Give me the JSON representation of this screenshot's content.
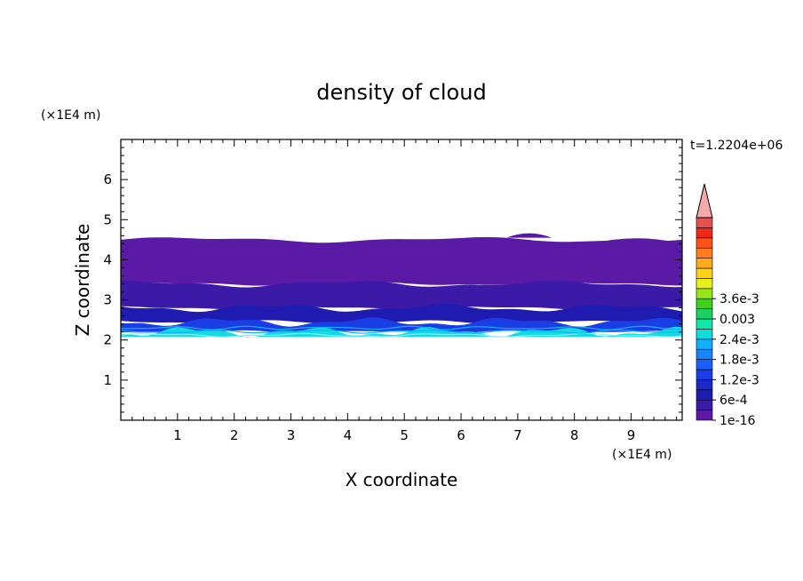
{
  "chart_data": {
    "type": "heatmap",
    "title": "density of cloud",
    "xlabel": "X coordinate",
    "ylabel": "Z coordinate",
    "x_unit": "(×1E4 m)",
    "y_unit": "(×1E4 m)",
    "time_label": "t=1.2204e+06",
    "xlim": [
      0,
      9.9
    ],
    "ylim": [
      0,
      7
    ],
    "x_ticks": [
      "1",
      "2",
      "3",
      "4",
      "5",
      "6",
      "7",
      "8",
      "9"
    ],
    "y_ticks": [
      "1",
      "2",
      "3",
      "4",
      "5",
      "6"
    ],
    "colorbar": {
      "labels": [
        "1e-16",
        "6e-4",
        "1.2e-3",
        "1.8e-3",
        "2.4e-3",
        "0.003",
        "3.6e-3"
      ],
      "colors": [
        "#5a1aa6",
        "#3a1aa6",
        "#1f1ab0",
        "#1a2ac8",
        "#1a3ee6",
        "#1a60ff",
        "#1a84ff",
        "#12b0ff",
        "#12dcdc",
        "#12e6a8",
        "#1ad264",
        "#3cd21a",
        "#96e61a",
        "#e6f01a",
        "#ffd21a",
        "#ffaa1a",
        "#ff7d1a",
        "#ff501a",
        "#f0281a",
        "#e65050",
        "#f4a8a8"
      ]
    },
    "cloud_layers": [
      {
        "z_range": [
          3.4,
          4.5
        ],
        "value": "1e-16",
        "color": "#5a1aa6"
      },
      {
        "z_range": [
          2.8,
          3.4
        ],
        "value": "1e-16",
        "color": "#3a1aa6"
      },
      {
        "z_range": [
          2.45,
          2.8
        ],
        "value": "6e-4",
        "color": "#1f1ab0"
      },
      {
        "z_range": [
          2.2,
          2.45
        ],
        "value": "1.2e-3",
        "color": "#1a3ee6"
      },
      {
        "z_range": [
          2.08,
          2.2
        ],
        "value": "1.8e-3",
        "color": "#12dcdc"
      }
    ]
  }
}
